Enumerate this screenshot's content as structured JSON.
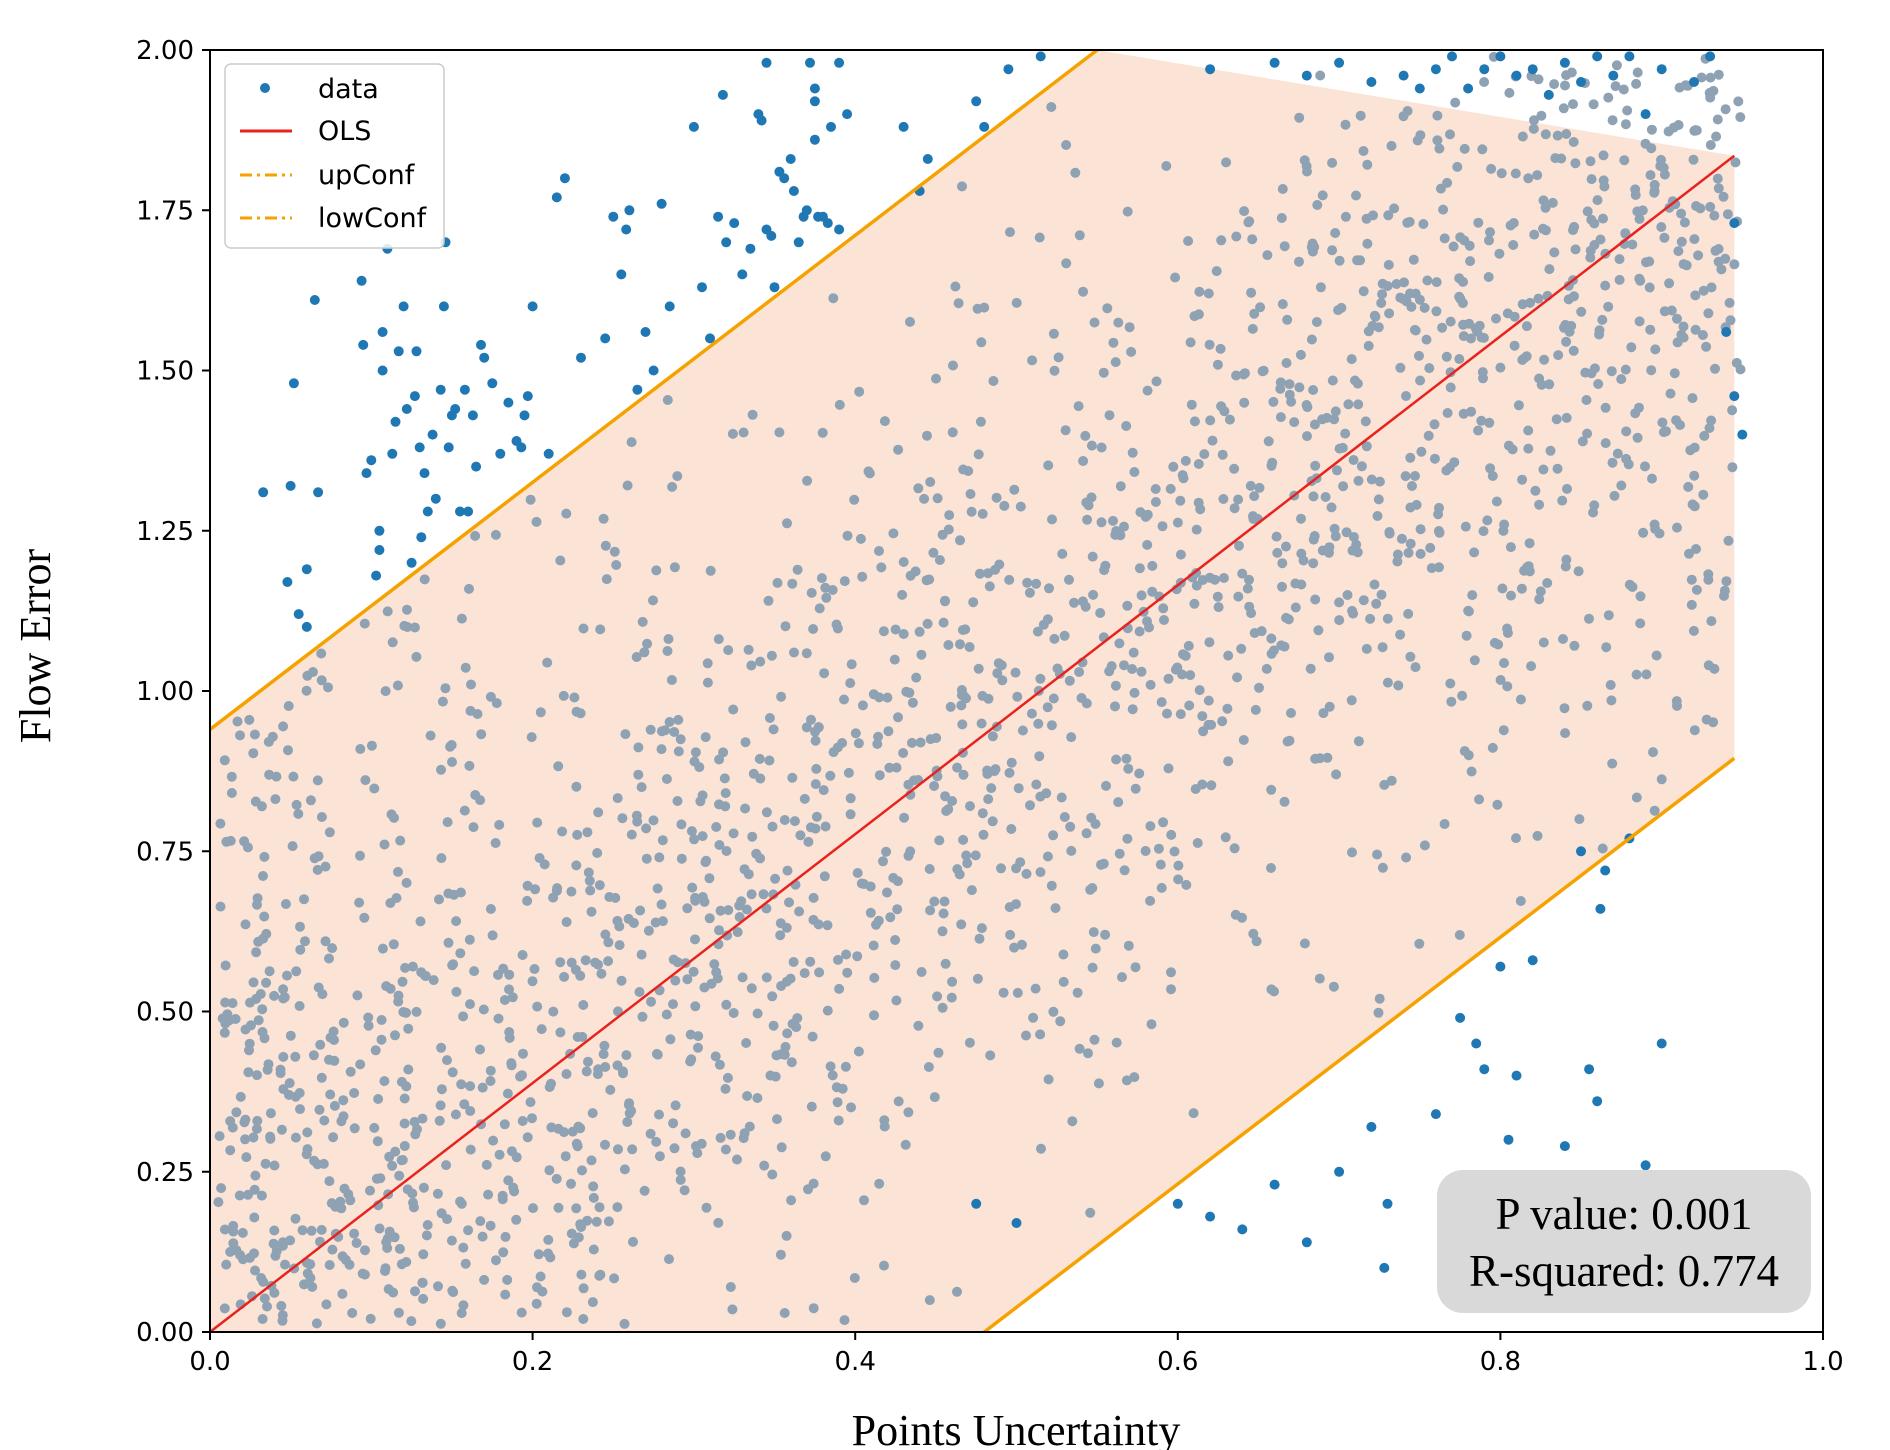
{
  "chart_data": {
    "type": "scatter",
    "title": "",
    "xlabel": "Points Uncertainty",
    "ylabel": "Flow Error",
    "xlim": [
      0.0,
      1.0
    ],
    "ylim": [
      0.0,
      2.0
    ],
    "x_ticks": [
      "0.0",
      "0.2",
      "0.4",
      "0.6",
      "0.8",
      "1.0"
    ],
    "y_ticks": [
      "0.00",
      "0.25",
      "0.50",
      "0.75",
      "1.00",
      "1.25",
      "1.50",
      "1.75",
      "2.00"
    ],
    "grid": false,
    "legend": {
      "placement": "top-left",
      "entries": [
        {
          "label": "data",
          "marker": "dot",
          "color": "#1f77b4"
        },
        {
          "label": "OLS",
          "marker": "line",
          "color": "#e8231f"
        },
        {
          "label": "upConf",
          "marker": "dashdot",
          "color": "#f5a200"
        },
        {
          "label": "lowConf",
          "marker": "dashdot",
          "color": "#f5a200"
        }
      ]
    },
    "series": [
      {
        "name": "OLS",
        "type": "line",
        "color": "#e8231f",
        "x": [
          0.0,
          0.945
        ],
        "y": [
          0.0,
          1.835
        ]
      },
      {
        "name": "upConf",
        "type": "line",
        "color": "#f5a200",
        "x": [
          0.0,
          0.55
        ],
        "y": [
          0.94,
          2.0
        ]
      },
      {
        "name": "lowConf",
        "type": "line",
        "color": "#f5a200",
        "x": [
          0.48,
          0.945
        ],
        "y": [
          0.0,
          0.895
        ]
      },
      {
        "name": "data",
        "type": "scatter",
        "color": "#1f77b4",
        "inside_color": "#8ea2b4",
        "count_approx": 2100
      }
    ],
    "confidence_band": {
      "color": "#fbe3d6",
      "polygon_x": [
        0.0,
        0.0,
        0.55,
        0.945,
        0.945,
        0.48
      ],
      "polygon_y": [
        0.0,
        0.94,
        2.0,
        1.835,
        0.895,
        0.0
      ]
    },
    "outliers": [
      [
        0.033,
        1.31
      ],
      [
        0.05,
        1.32
      ],
      [
        0.052,
        1.48
      ],
      [
        0.048,
        1.17
      ],
      [
        0.055,
        1.12
      ],
      [
        0.06,
        1.19
      ],
      [
        0.06,
        1.1
      ],
      [
        0.065,
        1.61
      ],
      [
        0.067,
        1.31
      ],
      [
        0.094,
        1.64
      ],
      [
        0.095,
        1.54
      ],
      [
        0.097,
        1.34
      ],
      [
        0.1,
        1.36
      ],
      [
        0.103,
        1.18
      ],
      [
        0.105,
        1.25
      ],
      [
        0.105,
        1.22
      ],
      [
        0.107,
        1.56
      ],
      [
        0.107,
        1.5
      ],
      [
        0.11,
        1.69
      ],
      [
        0.113,
        1.37
      ],
      [
        0.115,
        1.42
      ],
      [
        0.117,
        1.53
      ],
      [
        0.12,
        1.6
      ],
      [
        0.122,
        1.44
      ],
      [
        0.125,
        1.2
      ],
      [
        0.127,
        1.46
      ],
      [
        0.128,
        1.53
      ],
      [
        0.13,
        1.38
      ],
      [
        0.131,
        1.24
      ],
      [
        0.133,
        1.34
      ],
      [
        0.135,
        1.28
      ],
      [
        0.138,
        1.4
      ],
      [
        0.14,
        1.3
      ],
      [
        0.143,
        1.47
      ],
      [
        0.145,
        1.6
      ],
      [
        0.146,
        1.7
      ],
      [
        0.148,
        1.38
      ],
      [
        0.15,
        1.43
      ],
      [
        0.152,
        1.44
      ],
      [
        0.155,
        1.28
      ],
      [
        0.158,
        1.47
      ],
      [
        0.16,
        1.28
      ],
      [
        0.163,
        1.43
      ],
      [
        0.165,
        1.35
      ],
      [
        0.168,
        1.54
      ],
      [
        0.17,
        1.52
      ],
      [
        0.175,
        1.48
      ],
      [
        0.18,
        1.37
      ],
      [
        0.185,
        1.45
      ],
      [
        0.19,
        1.39
      ],
      [
        0.193,
        1.38
      ],
      [
        0.195,
        1.43
      ],
      [
        0.197,
        1.46
      ],
      [
        0.2,
        1.6
      ],
      [
        0.21,
        1.37
      ],
      [
        0.215,
        1.77
      ],
      [
        0.22,
        1.8
      ],
      [
        0.23,
        1.52
      ],
      [
        0.245,
        1.55
      ],
      [
        0.25,
        1.74
      ],
      [
        0.255,
        1.65
      ],
      [
        0.258,
        1.72
      ],
      [
        0.26,
        1.75
      ],
      [
        0.265,
        1.47
      ],
      [
        0.27,
        1.56
      ],
      [
        0.275,
        1.5
      ],
      [
        0.28,
        1.76
      ],
      [
        0.285,
        1.6
      ],
      [
        0.3,
        1.88
      ],
      [
        0.305,
        1.63
      ],
      [
        0.31,
        1.55
      ],
      [
        0.315,
        1.74
      ],
      [
        0.318,
        1.93
      ],
      [
        0.32,
        1.7
      ],
      [
        0.325,
        1.73
      ],
      [
        0.33,
        1.65
      ],
      [
        0.335,
        1.69
      ],
      [
        0.34,
        1.9
      ],
      [
        0.342,
        1.89
      ],
      [
        0.345,
        1.72
      ],
      [
        0.348,
        1.71
      ],
      [
        0.35,
        1.63
      ],
      [
        0.353,
        1.81
      ],
      [
        0.356,
        1.8
      ],
      [
        0.36,
        1.83
      ],
      [
        0.362,
        1.78
      ],
      [
        0.365,
        1.7
      ],
      [
        0.368,
        1.74
      ],
      [
        0.37,
        1.75
      ],
      [
        0.372,
        1.98
      ],
      [
        0.375,
        1.86
      ],
      [
        0.377,
        1.74
      ],
      [
        0.38,
        1.74
      ],
      [
        0.383,
        1.73
      ],
      [
        0.385,
        1.88
      ],
      [
        0.39,
        1.72
      ],
      [
        0.43,
        1.88
      ],
      [
        0.44,
        1.78
      ],
      [
        0.445,
        1.83
      ],
      [
        0.475,
        1.92
      ],
      [
        0.48,
        1.88
      ],
      [
        0.495,
        1.97
      ],
      [
        0.515,
        1.99
      ],
      [
        0.345,
        1.98
      ],
      [
        0.39,
        1.98
      ],
      [
        0.375,
        1.94
      ],
      [
        0.375,
        1.92
      ],
      [
        0.395,
        1.9
      ],
      [
        0.62,
        1.97
      ],
      [
        0.66,
        1.98
      ],
      [
        0.68,
        1.96
      ],
      [
        0.7,
        1.98
      ],
      [
        0.72,
        1.95
      ],
      [
        0.74,
        1.96
      ],
      [
        0.75,
        1.94
      ],
      [
        0.76,
        1.97
      ],
      [
        0.77,
        1.99
      ],
      [
        0.78,
        1.94
      ],
      [
        0.79,
        1.97
      ],
      [
        0.8,
        1.99
      ],
      [
        0.81,
        1.96
      ],
      [
        0.82,
        1.97
      ],
      [
        0.83,
        1.93
      ],
      [
        0.84,
        1.98
      ],
      [
        0.85,
        1.95
      ],
      [
        0.86,
        1.99
      ],
      [
        0.87,
        1.96
      ],
      [
        0.88,
        1.99
      ],
      [
        0.89,
        1.9
      ],
      [
        0.9,
        1.97
      ],
      [
        0.92,
        1.95
      ],
      [
        0.93,
        1.99
      ],
      [
        0.945,
        1.73
      ],
      [
        0.94,
        1.56
      ],
      [
        0.945,
        1.46
      ],
      [
        0.95,
        1.4
      ],
      [
        0.475,
        0.2
      ],
      [
        0.5,
        0.17
      ],
      [
        0.6,
        0.2
      ],
      [
        0.62,
        0.18
      ],
      [
        0.64,
        0.16
      ],
      [
        0.66,
        0.23
      ],
      [
        0.68,
        0.14
      ],
      [
        0.7,
        0.25
      ],
      [
        0.72,
        0.32
      ],
      [
        0.73,
        0.2
      ],
      [
        0.728,
        0.1
      ],
      [
        0.76,
        0.34
      ],
      [
        0.775,
        0.49
      ],
      [
        0.785,
        0.45
      ],
      [
        0.79,
        0.41
      ],
      [
        0.8,
        0.57
      ],
      [
        0.805,
        0.3
      ],
      [
        0.81,
        0.4
      ],
      [
        0.82,
        0.58
      ],
      [
        0.84,
        0.29
      ],
      [
        0.85,
        0.75
      ],
      [
        0.855,
        0.41
      ],
      [
        0.86,
        0.36
      ],
      [
        0.862,
        0.66
      ],
      [
        0.865,
        0.72
      ],
      [
        0.88,
        0.77
      ],
      [
        0.89,
        0.26
      ],
      [
        0.9,
        0.45
      ]
    ],
    "stats_box": {
      "line1": "P value: 0.001",
      "line2": "R-squared: 0.774"
    }
  }
}
